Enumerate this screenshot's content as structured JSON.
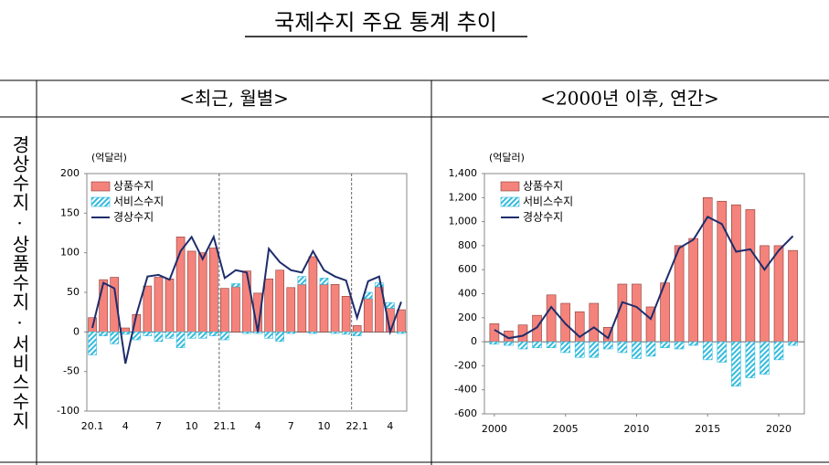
{
  "title": "국제수지 주요 통계 추이",
  "columns": [
    "<최근, 월별>",
    "<2000년 이후, 연간>"
  ],
  "row_label": "경상수지·상품수지·서비스수지",
  "chart_data": [
    {
      "type": "bar-line",
      "y_label": "(억달러)",
      "categories": [
        "20.1",
        null,
        null,
        "4",
        null,
        null,
        "7",
        null,
        null,
        "10",
        null,
        null,
        "21.1",
        null,
        null,
        "4",
        null,
        null,
        "7",
        null,
        null,
        "10",
        null,
        null,
        "22.1",
        null,
        null,
        "4",
        null
      ],
      "series": [
        {
          "name": "상품수지",
          "color": "#f4837c",
          "kind": "bar",
          "values": [
            18,
            66,
            69,
            5,
            22,
            58,
            69,
            67,
            120,
            102,
            100,
            106,
            55,
            57,
            77,
            49,
            67,
            78,
            56,
            60,
            95,
            60,
            60,
            45,
            8,
            42,
            57,
            30,
            28
          ]
        },
        {
          "name": "서비스수지",
          "color": "#33bbdd",
          "kind": "bar",
          "hatch": true,
          "values": [
            -29,
            -5,
            -15,
            -3,
            -10,
            -5,
            -12,
            -8,
            -20,
            -8,
            -8,
            -5,
            -10,
            4,
            -2,
            -2,
            -8,
            -12,
            -2,
            10,
            -2,
            8,
            -2,
            -3,
            -5,
            8,
            5,
            7,
            -2
          ]
        },
        {
          "name": "경상수지",
          "color": "#1f2d6b",
          "kind": "line",
          "values": [
            5,
            62,
            55,
            -40,
            22,
            70,
            72,
            66,
            102,
            120,
            92,
            120,
            68,
            78,
            75,
            0,
            105,
            88,
            78,
            75,
            102,
            78,
            70,
            65,
            18,
            64,
            70,
            0,
            38
          ]
        }
      ],
      "ylim": [
        -100,
        200
      ],
      "yticks": [
        -100,
        -50,
        0,
        50,
        100,
        150,
        200
      ]
    },
    {
      "type": "bar-line",
      "y_label": "(억달러)",
      "x": [
        2000,
        2001,
        2002,
        2003,
        2004,
        2005,
        2006,
        2007,
        2008,
        2009,
        2010,
        2011,
        2012,
        2013,
        2014,
        2015,
        2016,
        2017,
        2018,
        2019,
        2020,
        2021
      ],
      "series": [
        {
          "name": "상품수지",
          "color": "#f4837c",
          "kind": "bar",
          "values": [
            150,
            90,
            140,
            220,
            390,
            320,
            250,
            320,
            120,
            480,
            480,
            290,
            490,
            800,
            860,
            1200,
            1170,
            1140,
            1100,
            800,
            800,
            760
          ]
        },
        {
          "name": "서비스수지",
          "color": "#33bbdd",
          "kind": "bar",
          "hatch": true,
          "values": [
            -20,
            -30,
            -60,
            -50,
            -50,
            -90,
            -130,
            -130,
            -60,
            -90,
            -140,
            -120,
            -50,
            -60,
            -30,
            -150,
            -170,
            -370,
            -300,
            -270,
            -150,
            -30
          ]
        },
        {
          "name": "경상수지",
          "color": "#1f2d6b",
          "kind": "line",
          "values": [
            100,
            30,
            50,
            120,
            290,
            150,
            40,
            120,
            30,
            330,
            290,
            190,
            490,
            780,
            850,
            1040,
            980,
            750,
            770,
            600,
            760,
            880
          ]
        }
      ],
      "xlim": [
        1999.3,
        2021.8
      ],
      "xticks": [
        2000,
        2005,
        2010,
        2015,
        2020
      ],
      "ylim": [
        -600,
        1400
      ],
      "yticks": [
        -600,
        -400,
        -200,
        0,
        200,
        400,
        600,
        800,
        {
          "value": 1000,
          "label": "1,000"
        },
        {
          "value": 1200,
          "label": "1,200"
        },
        {
          "value": 1400,
          "label": "1,400"
        }
      ]
    }
  ]
}
